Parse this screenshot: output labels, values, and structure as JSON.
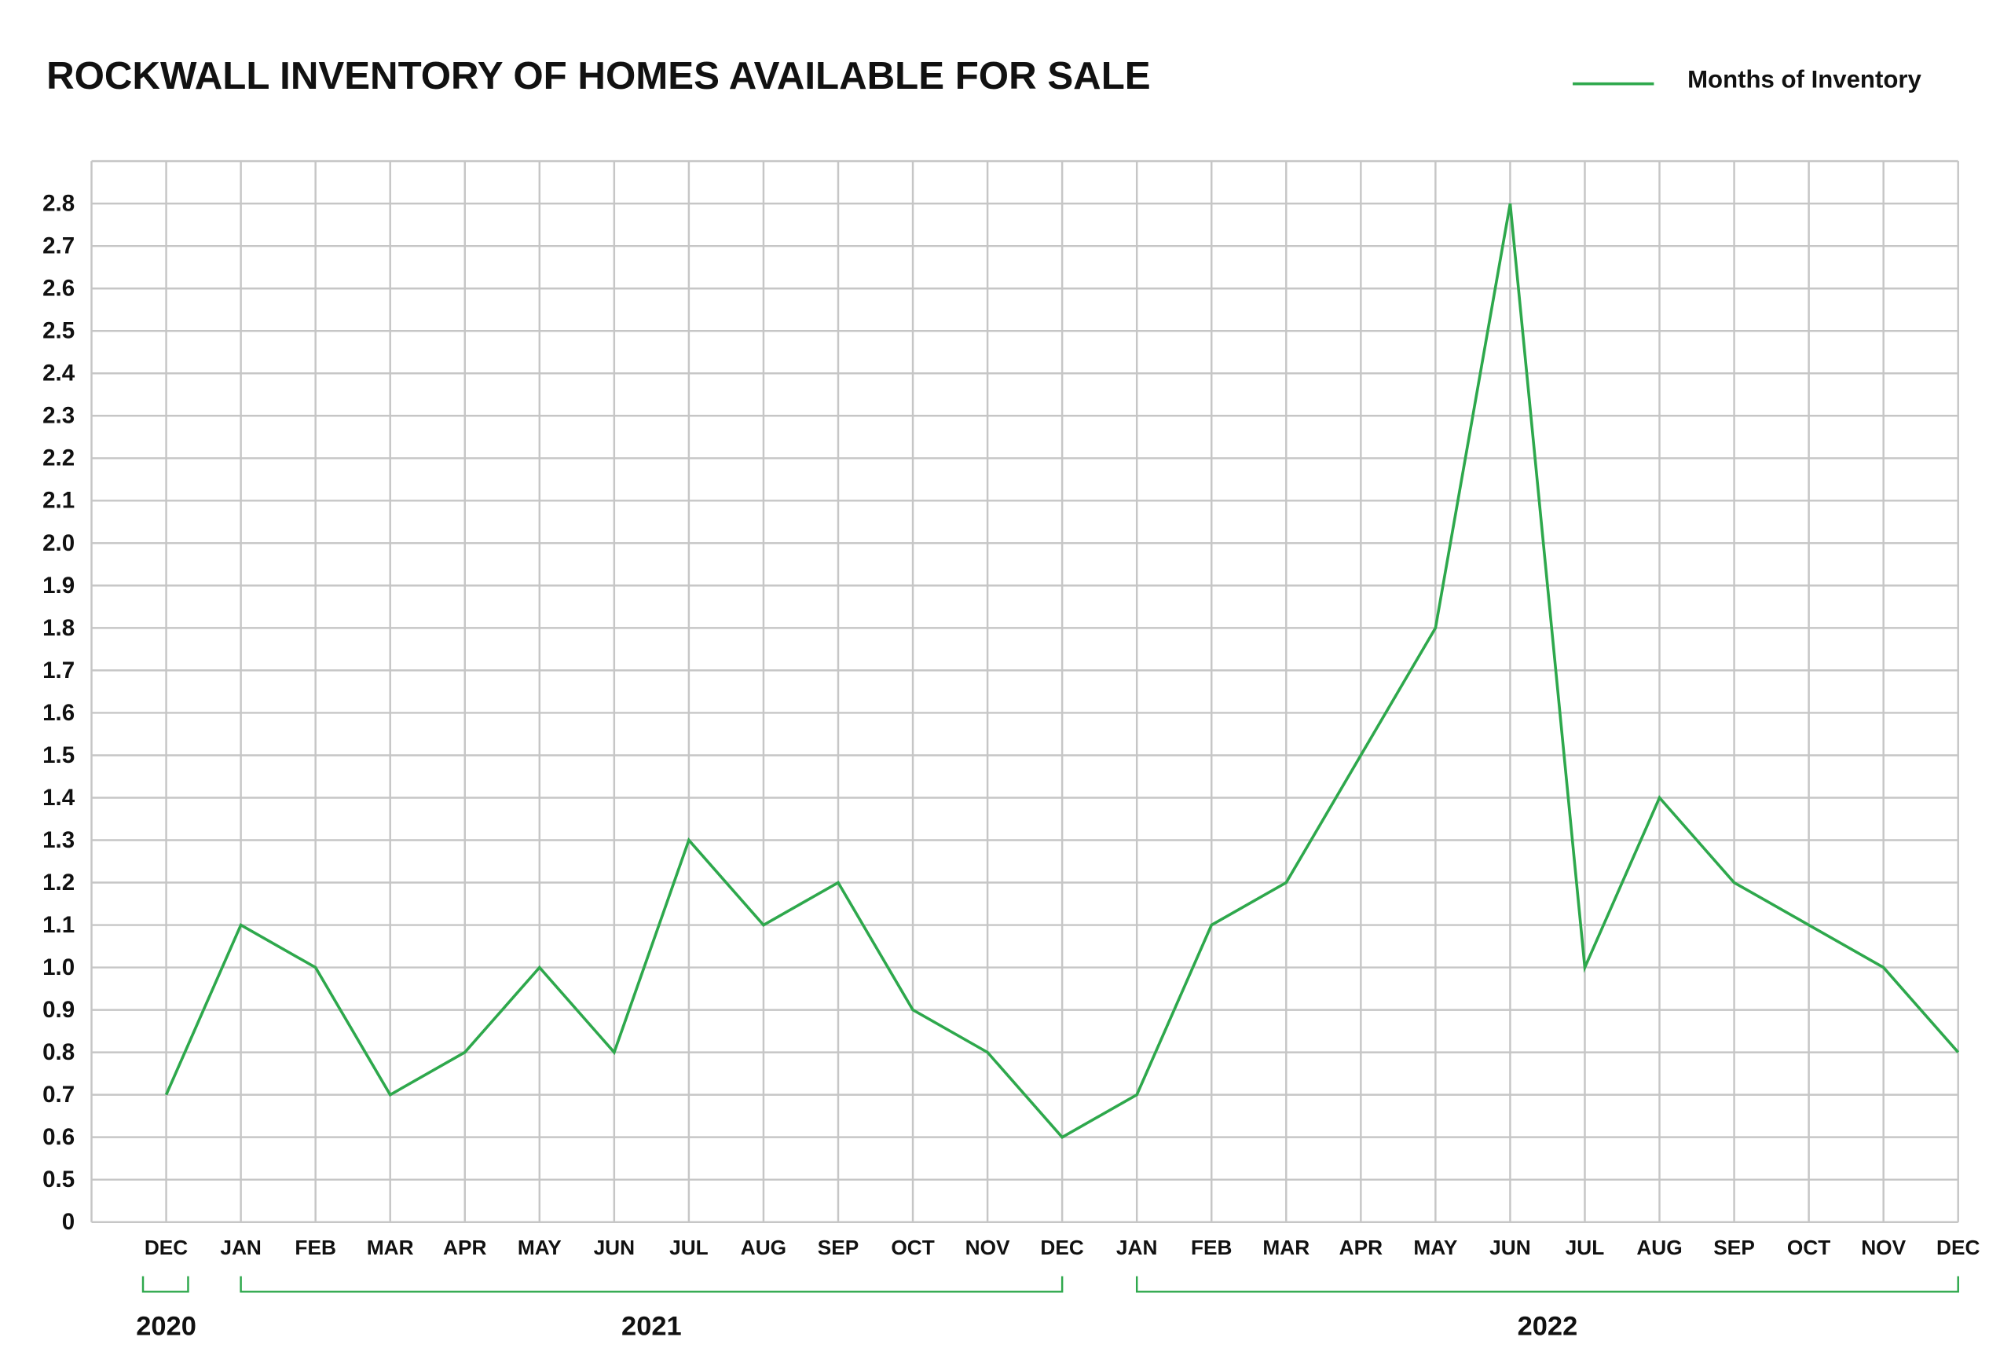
{
  "chart_data": {
    "type": "line",
    "title": "ROCKWALL INVENTORY OF HOMES AVAILABLE FOR SALE",
    "categories": [
      "DEC",
      "JAN",
      "FEB",
      "MAR",
      "APR",
      "MAY",
      "JUN",
      "JUL",
      "AUG",
      "SEP",
      "OCT",
      "NOV",
      "DEC",
      "JAN",
      "FEB",
      "MAR",
      "APR",
      "MAY",
      "JUN",
      "JUL",
      "AUG",
      "SEP",
      "OCT",
      "NOV",
      "DEC"
    ],
    "x_groups": [
      {
        "label": "2020",
        "span": 1
      },
      {
        "label": "2021",
        "span": 12
      },
      {
        "label": "2022",
        "span": 12
      }
    ],
    "series": [
      {
        "name": "Months of Inventory",
        "color": "#2ea84c",
        "values": [
          0.7,
          1.1,
          1.0,
          0.7,
          0.8,
          1.0,
          0.8,
          1.3,
          1.1,
          1.2,
          0.9,
          0.8,
          0.6,
          0.7,
          1.1,
          1.2,
          1.5,
          1.8,
          2.8,
          1.0,
          1.4,
          1.2,
          1.1,
          1.0,
          0.8
        ]
      }
    ],
    "ylim": [
      0,
      2.9
    ],
    "yticks": [
      0,
      0.5,
      0.6,
      0.7,
      0.8,
      0.9,
      {
        "value": 1,
        "label": "1.0"
      },
      1.1,
      1.2,
      1.3,
      1.4,
      1.5,
      1.6,
      1.7,
      1.8,
      1.9,
      {
        "value": 2,
        "label": "2.0"
      },
      2.1,
      2.2,
      2.3,
      2.4,
      2.5,
      2.6,
      2.7,
      2.8
    ],
    "grid": true,
    "legend": "top-right"
  }
}
